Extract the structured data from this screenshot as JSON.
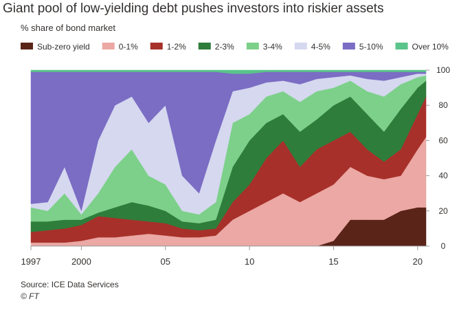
{
  "chart_data": {
    "type": "stacked-area",
    "title": "Giant pool of low-yielding debt pushes investors into riskier assets",
    "subtitle": "% share of bond market",
    "source": "Source: ICE Data Services",
    "credit": "© FT",
    "x": [
      1997,
      1998,
      1999,
      2000,
      2001,
      2002,
      2003,
      2004,
      2005,
      2006,
      2007,
      2008,
      2009,
      2010,
      2011,
      2012,
      2013,
      2014,
      2015,
      2016,
      2017,
      2018,
      2019,
      2020,
      2020.5
    ],
    "xlim": [
      1997,
      2020.5
    ],
    "xticks": [
      1997,
      2000,
      {
        "value": 2005,
        "label": "05"
      },
      {
        "value": 2010,
        "label": "10"
      },
      {
        "value": 2015,
        "label": "15"
      },
      {
        "value": 2020,
        "label": "20"
      }
    ],
    "ylim": [
      0,
      100
    ],
    "yticks": [
      0,
      20,
      40,
      60,
      80,
      100
    ],
    "series": [
      {
        "name": "Sub-zero yield",
        "color": "#5a2418",
        "values": [
          0,
          0,
          0,
          0,
          0,
          0,
          0,
          0,
          0,
          0,
          0,
          0,
          0,
          0,
          0,
          0,
          0,
          0,
          3,
          15,
          15,
          15,
          20,
          22,
          22
        ]
      },
      {
        "name": "0-1%",
        "color": "#eba8a4",
        "values": [
          2,
          2,
          2,
          3,
          5,
          5,
          6,
          7,
          6,
          5,
          5,
          6,
          15,
          20,
          25,
          30,
          25,
          30,
          32,
          30,
          25,
          23,
          20,
          33,
          40
        ]
      },
      {
        "name": "1-2%",
        "color": "#a8302a",
        "values": [
          6,
          7,
          8,
          9,
          12,
          11,
          9,
          7,
          7,
          5,
          4,
          4,
          10,
          15,
          25,
          30,
          20,
          25,
          25,
          20,
          15,
          10,
          15,
          20,
          23
        ]
      },
      {
        "name": "2-3%",
        "color": "#2e7d3a",
        "values": [
          6,
          5,
          5,
          3,
          2,
          6,
          10,
          9,
          7,
          4,
          4,
          5,
          20,
          25,
          20,
          15,
          20,
          17,
          20,
          20,
          20,
          17,
          23,
          15,
          9
        ]
      },
      {
        "name": "3-4%",
        "color": "#7dd08a",
        "values": [
          8,
          6,
          15,
          3,
          11,
          23,
          30,
          17,
          15,
          6,
          5,
          10,
          25,
          15,
          15,
          13,
          17,
          16,
          10,
          9,
          13,
          20,
          14,
          6,
          3
        ]
      },
      {
        "name": "4-5%",
        "color": "#d5d8ef",
        "values": [
          2,
          5,
          15,
          2,
          30,
          35,
          30,
          30,
          45,
          20,
          12,
          35,
          18,
          15,
          8,
          6,
          10,
          7,
          6,
          3,
          7,
          9,
          4,
          2,
          1
        ]
      },
      {
        "name": "5-10%",
        "color": "#7b6cc4",
        "values": [
          75,
          74,
          54,
          79,
          39,
          19,
          14,
          29,
          19,
          59,
          69,
          39,
          10,
          8,
          6,
          5,
          7,
          4,
          3,
          2,
          4,
          5,
          3,
          1,
          1
        ]
      },
      {
        "name": "Over 10%",
        "color": "#5ac48a",
        "values": [
          1,
          1,
          1,
          1,
          1,
          1,
          1,
          1,
          1,
          1,
          1,
          1,
          2,
          2,
          1,
          1,
          1,
          1,
          1,
          1,
          1,
          1,
          1,
          1,
          1
        ]
      }
    ]
  }
}
